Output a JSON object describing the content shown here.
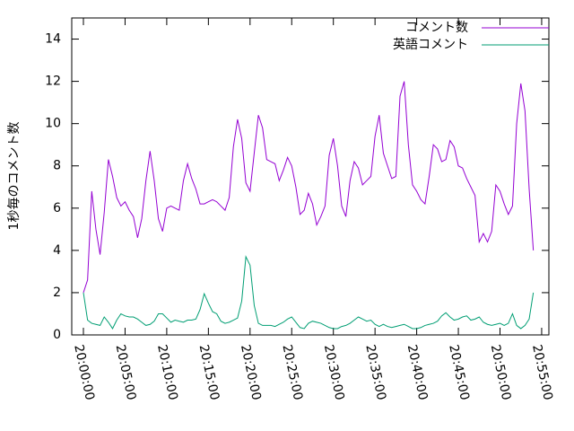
{
  "chart_data": {
    "type": "line",
    "y_label": "1秒毎のコメント数",
    "x": [
      "20:00:00",
      "20:00:30",
      "20:01:00",
      "20:01:30",
      "20:02:00",
      "20:02:30",
      "20:03:00",
      "20:03:30",
      "20:04:00",
      "20:04:30",
      "20:05:00",
      "20:05:30",
      "20:06:00",
      "20:06:30",
      "20:07:00",
      "20:07:30",
      "20:08:00",
      "20:08:30",
      "20:09:00",
      "20:09:30",
      "20:10:00",
      "20:10:30",
      "20:11:00",
      "20:11:30",
      "20:12:00",
      "20:12:30",
      "20:13:00",
      "20:13:30",
      "20:14:00",
      "20:14:30",
      "20:15:00",
      "20:15:30",
      "20:16:00",
      "20:16:30",
      "20:17:00",
      "20:17:30",
      "20:18:00",
      "20:18:30",
      "20:19:00",
      "20:19:30",
      "20:20:00",
      "20:20:30",
      "20:21:00",
      "20:21:30",
      "20:22:00",
      "20:22:30",
      "20:23:00",
      "20:23:30",
      "20:24:00",
      "20:24:30",
      "20:25:00",
      "20:25:30",
      "20:26:00",
      "20:26:30",
      "20:27:00",
      "20:27:30",
      "20:28:00",
      "20:28:30",
      "20:29:00",
      "20:29:30",
      "20:30:00",
      "20:30:30",
      "20:31:00",
      "20:31:30",
      "20:32:00",
      "20:32:30",
      "20:33:00",
      "20:33:30",
      "20:34:00",
      "20:34:30",
      "20:35:00",
      "20:35:30",
      "20:36:00",
      "20:36:30",
      "20:37:00",
      "20:37:30",
      "20:38:00",
      "20:38:30",
      "20:39:00",
      "20:39:30",
      "20:40:00",
      "20:40:30",
      "20:41:00",
      "20:41:30",
      "20:42:00",
      "20:42:30",
      "20:43:00",
      "20:43:30",
      "20:44:00",
      "20:44:30",
      "20:45:00",
      "20:45:30",
      "20:46:00",
      "20:46:30",
      "20:47:00",
      "20:47:30",
      "20:48:00",
      "20:48:30",
      "20:49:00",
      "20:49:30",
      "20:50:00",
      "20:50:30",
      "20:51:00",
      "20:51:30",
      "20:52:00",
      "20:52:30",
      "20:53:00",
      "20:53:30",
      "20:54:00"
    ],
    "series": [
      {
        "name": "コメント数",
        "color": "#9400d3",
        "values": [
          2.0,
          2.6,
          6.8,
          5.0,
          3.8,
          5.8,
          8.3,
          7.5,
          6.5,
          6.1,
          6.3,
          5.9,
          5.6,
          4.6,
          5.5,
          7.3,
          8.7,
          7.3,
          5.5,
          4.9,
          6.0,
          6.1,
          6.0,
          5.9,
          7.3,
          8.1,
          7.4,
          6.9,
          6.2,
          6.2,
          6.3,
          6.4,
          6.3,
          6.1,
          5.9,
          6.5,
          8.9,
          10.2,
          9.3,
          7.2,
          6.8,
          8.6,
          10.4,
          9.8,
          8.3,
          8.2,
          8.1,
          7.3,
          7.8,
          8.4,
          8.0,
          7.0,
          5.7,
          5.9,
          6.7,
          6.2,
          5.2,
          5.6,
          6.1,
          8.5,
          9.3,
          8.0,
          6.1,
          5.6,
          7.3,
          8.2,
          7.9,
          7.1,
          7.3,
          7.5,
          9.4,
          10.4,
          8.6,
          8.0,
          7.4,
          7.5,
          11.3,
          12.0,
          9.0,
          7.1,
          6.8,
          6.4,
          6.2,
          7.5,
          9.0,
          8.8,
          8.2,
          8.3,
          9.2,
          8.9,
          8.0,
          7.9,
          7.4,
          7.0,
          6.6,
          4.4,
          4.8,
          4.4,
          4.9,
          7.1,
          6.8,
          6.2,
          5.7,
          6.1,
          10.0,
          11.9,
          10.6,
          6.9,
          4.0
        ]
      },
      {
        "name": "英語コメント",
        "color": "#009e73",
        "values": [
          2.0,
          0.7,
          0.55,
          0.5,
          0.45,
          0.85,
          0.6,
          0.3,
          0.7,
          1.0,
          0.9,
          0.85,
          0.85,
          0.75,
          0.6,
          0.45,
          0.5,
          0.65,
          1.0,
          1.0,
          0.8,
          0.6,
          0.7,
          0.65,
          0.6,
          0.7,
          0.7,
          0.75,
          1.2,
          1.95,
          1.5,
          1.1,
          1.0,
          0.65,
          0.55,
          0.6,
          0.7,
          0.8,
          1.6,
          3.7,
          3.3,
          1.4,
          0.55,
          0.45,
          0.45,
          0.45,
          0.4,
          0.5,
          0.6,
          0.75,
          0.85,
          0.6,
          0.35,
          0.3,
          0.55,
          0.65,
          0.6,
          0.55,
          0.45,
          0.35,
          0.3,
          0.3,
          0.4,
          0.45,
          0.55,
          0.7,
          0.85,
          0.75,
          0.65,
          0.7,
          0.5,
          0.4,
          0.5,
          0.4,
          0.35,
          0.4,
          0.45,
          0.5,
          0.4,
          0.3,
          0.3,
          0.35,
          0.45,
          0.5,
          0.55,
          0.65,
          0.9,
          1.05,
          0.85,
          0.7,
          0.75,
          0.85,
          0.9,
          0.7,
          0.75,
          0.85,
          0.6,
          0.5,
          0.45,
          0.5,
          0.55,
          0.45,
          0.55,
          1.0,
          0.45,
          0.3,
          0.45,
          0.75,
          2.0
        ]
      }
    ],
    "xlim": [
      "19:58:36",
      "20:55:52"
    ],
    "xticks": [
      "20:00:00",
      "20:05:00",
      "20:10:00",
      "20:15:00",
      "20:20:00",
      "20:25:00",
      "20:30:00",
      "20:35:00",
      "20:40:00",
      "20:45:00",
      "20:50:00",
      "20:55:00"
    ],
    "ylim": [
      0,
      15
    ],
    "yticks": [
      0,
      2,
      4,
      6,
      8,
      10,
      12,
      14
    ],
    "legend": "top-right",
    "grid": false
  }
}
